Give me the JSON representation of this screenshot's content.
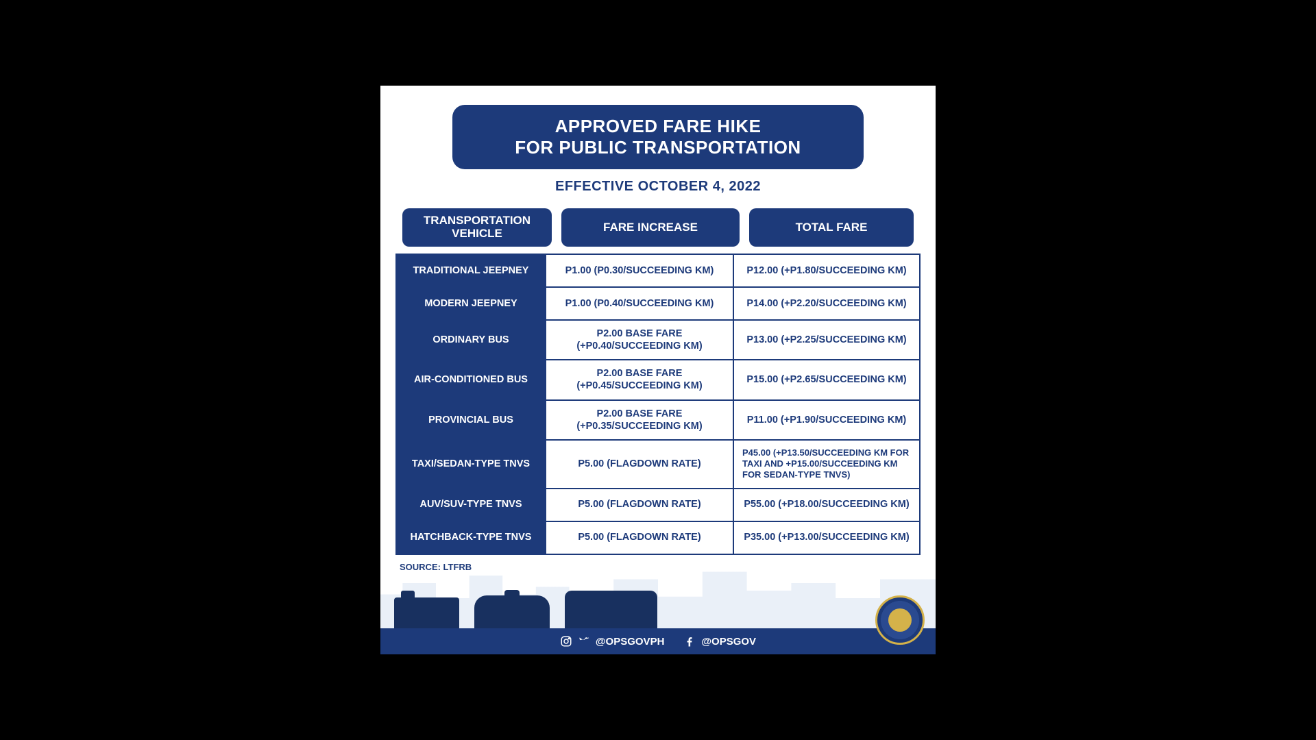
{
  "colors": {
    "page_bg": "#000000",
    "poster_bg": "#ffffff",
    "brand_navy": "#1d3a7a",
    "skyline": "#d9e3f2",
    "vehicle_silhouette": "#18305f",
    "seal_gold": "#d4b24a"
  },
  "title": {
    "line1": "APPROVED FARE HIKE",
    "line2": "FOR PUBLIC TRANSPORTATION"
  },
  "effective": "EFFECTIVE OCTOBER 4, 2022",
  "headers": {
    "vehicle": "TRANSPORTATION VEHICLE",
    "increase": "FARE INCREASE",
    "total": "TOTAL FARE"
  },
  "rows": [
    {
      "vehicle": "TRADITIONAL JEEPNEY",
      "increase": "P1.00 (P0.30/SUCCEEDING KM)",
      "total": "P12.00 (+P1.80/SUCCEEDING KM)"
    },
    {
      "vehicle": "MODERN JEEPNEY",
      "increase": "P1.00 (P0.40/SUCCEEDING KM)",
      "total": "P14.00 (+P2.20/SUCCEEDING KM)"
    },
    {
      "vehicle": "ORDINARY BUS",
      "increase": "P2.00 BASE FARE (+P0.40/SUCCEEDING KM)",
      "total": "P13.00 (+P2.25/SUCCEEDING KM)"
    },
    {
      "vehicle": "AIR-CONDITIONED BUS",
      "increase": "P2.00 BASE FARE (+P0.45/SUCCEEDING KM)",
      "total": "P15.00 (+P2.65/SUCCEEDING KM)"
    },
    {
      "vehicle": "PROVINCIAL BUS",
      "increase": "P2.00 BASE FARE (+P0.35/SUCCEEDING KM)",
      "total": "P11.00 (+P1.90/SUCCEEDING KM)"
    },
    {
      "vehicle": "TAXI/SEDAN-TYPE TNVS",
      "increase": "P5.00 (FLAGDOWN RATE)",
      "total": "P45.00 (+P13.50/SUCCEEDING KM FOR TAXI AND +P15.00/SUCCEEDING KM FOR SEDAN-TYPE TNVS)",
      "total_small": true
    },
    {
      "vehicle": "AUV/SUV-TYPE TNVS",
      "increase": "P5.00 (FLAGDOWN RATE)",
      "total": "P55.00 (+P18.00/SUCCEEDING KM)"
    },
    {
      "vehicle": "HATCHBACK-TYPE TNVS",
      "increase": "P5.00 (FLAGDOWN RATE)",
      "total": "P35.00 (+P13.00/SUCCEEDING KM)"
    }
  ],
  "source": "SOURCE: LTFRB",
  "footer": {
    "handle1": "@OPSGOVPH",
    "handle2": "@OPSGOV"
  }
}
